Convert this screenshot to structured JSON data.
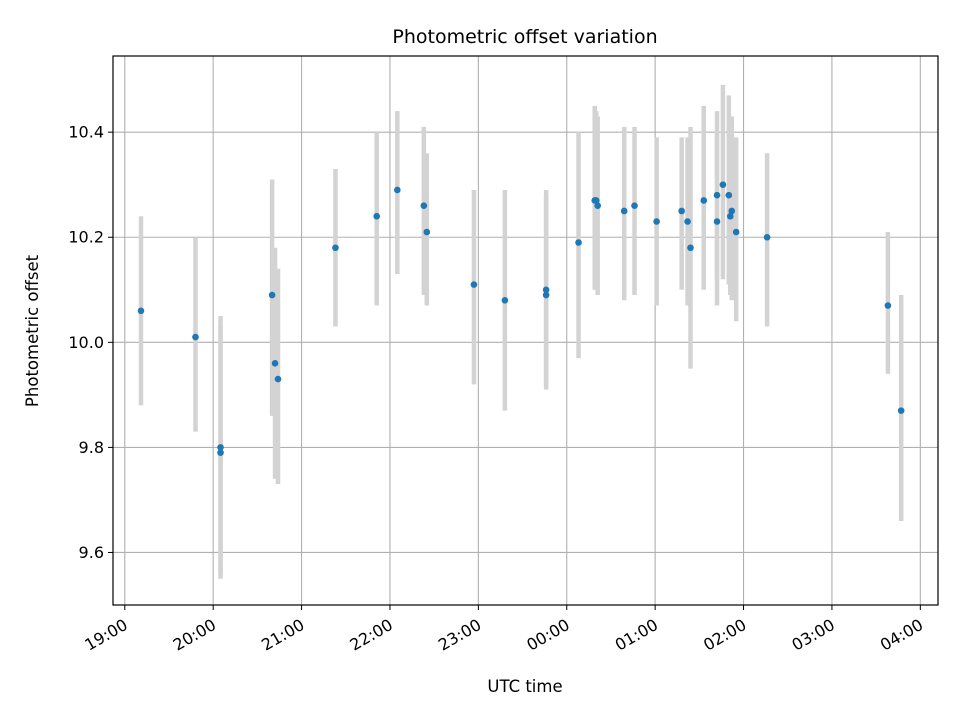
{
  "chart_data": {
    "type": "scatter",
    "title": "Photometric offset variation",
    "xlabel": "UTC time",
    "ylabel": "Photometric offset",
    "x_ticks": [
      "19:00",
      "20:00",
      "21:00",
      "22:00",
      "23:00",
      "00:00",
      "01:00",
      "02:00",
      "03:00",
      "04:00"
    ],
    "y_ticks": [
      "9.6",
      "9.8",
      "10.0",
      "10.2",
      "10.4"
    ],
    "xlim": [
      "18:52",
      "04:12"
    ],
    "ylim": [
      9.5,
      10.545
    ],
    "grid": true,
    "colors": {
      "point": "#1f77b4",
      "errorbar": "#d3d3d3",
      "grid": "#b0b0b0"
    },
    "series": [
      {
        "points": [
          {
            "x": "19:11",
            "y": 10.06,
            "err_low": 9.88,
            "err_high": 10.24
          },
          {
            "x": "19:48",
            "y": 10.01,
            "err_low": 9.83,
            "err_high": 10.2
          },
          {
            "x": "20:05",
            "y": 9.8,
            "err_low": 9.56,
            "err_high": 10.05
          },
          {
            "x": "20:05",
            "y": 9.79,
            "err_low": 9.55,
            "err_high": 10.03
          },
          {
            "x": "20:40",
            "y": 10.09,
            "err_low": 9.86,
            "err_high": 10.31
          },
          {
            "x": "20:42",
            "y": 9.96,
            "err_low": 9.74,
            "err_high": 10.18
          },
          {
            "x": "20:44",
            "y": 9.93,
            "err_low": 9.73,
            "err_high": 10.14
          },
          {
            "x": "21:23",
            "y": 10.18,
            "err_low": 10.03,
            "err_high": 10.33
          },
          {
            "x": "21:51",
            "y": 10.24,
            "err_low": 10.07,
            "err_high": 10.4
          },
          {
            "x": "22:05",
            "y": 10.29,
            "err_low": 10.13,
            "err_high": 10.44
          },
          {
            "x": "22:23",
            "y": 10.26,
            "err_low": 10.09,
            "err_high": 10.41
          },
          {
            "x": "22:25",
            "y": 10.21,
            "err_low": 10.07,
            "err_high": 10.36
          },
          {
            "x": "22:57",
            "y": 10.11,
            "err_low": 9.92,
            "err_high": 10.29
          },
          {
            "x": "23:18",
            "y": 10.08,
            "err_low": 9.87,
            "err_high": 10.29
          },
          {
            "x": "23:46",
            "y": 10.1,
            "err_low": 9.91,
            "err_high": 10.29
          },
          {
            "x": "23:46",
            "y": 10.09,
            "err_low": 9.92,
            "err_high": 10.28
          },
          {
            "x": "00:08",
            "y": 10.19,
            "err_low": 9.97,
            "err_high": 10.4
          },
          {
            "x": "00:19",
            "y": 10.27,
            "err_low": 10.1,
            "err_high": 10.45
          },
          {
            "x": "00:20",
            "y": 10.27,
            "err_low": 10.1,
            "err_high": 10.44
          },
          {
            "x": "00:21",
            "y": 10.26,
            "err_low": 10.09,
            "err_high": 10.43
          },
          {
            "x": "00:39",
            "y": 10.25,
            "err_low": 10.08,
            "err_high": 10.41
          },
          {
            "x": "00:46",
            "y": 10.26,
            "err_low": 10.09,
            "err_high": 10.41
          },
          {
            "x": "01:01",
            "y": 10.23,
            "err_low": 10.07,
            "err_high": 10.39
          },
          {
            "x": "01:18",
            "y": 10.25,
            "err_low": 10.1,
            "err_high": 10.39
          },
          {
            "x": "01:22",
            "y": 10.23,
            "err_low": 10.07,
            "err_high": 10.39
          },
          {
            "x": "01:24",
            "y": 10.18,
            "err_low": 9.95,
            "err_high": 10.41
          },
          {
            "x": "01:33",
            "y": 10.27,
            "err_low": 10.1,
            "err_high": 10.45
          },
          {
            "x": "01:42",
            "y": 10.28,
            "err_low": 10.12,
            "err_high": 10.44
          },
          {
            "x": "01:42",
            "y": 10.23,
            "err_low": 10.07,
            "err_high": 10.4
          },
          {
            "x": "01:46",
            "y": 10.3,
            "err_low": 10.12,
            "err_high": 10.49
          },
          {
            "x": "01:50",
            "y": 10.28,
            "err_low": 10.11,
            "err_high": 10.47
          },
          {
            "x": "01:51",
            "y": 10.24,
            "err_low": 10.09,
            "err_high": 10.39
          },
          {
            "x": "01:52",
            "y": 10.25,
            "err_low": 10.08,
            "err_high": 10.43
          },
          {
            "x": "01:55",
            "y": 10.21,
            "err_low": 10.04,
            "err_high": 10.39
          },
          {
            "x": "02:16",
            "y": 10.2,
            "err_low": 10.03,
            "err_high": 10.36
          },
          {
            "x": "03:38",
            "y": 10.07,
            "err_low": 9.94,
            "err_high": 10.21
          },
          {
            "x": "03:47",
            "y": 9.87,
            "err_low": 9.66,
            "err_high": 10.09
          }
        ]
      }
    ]
  }
}
